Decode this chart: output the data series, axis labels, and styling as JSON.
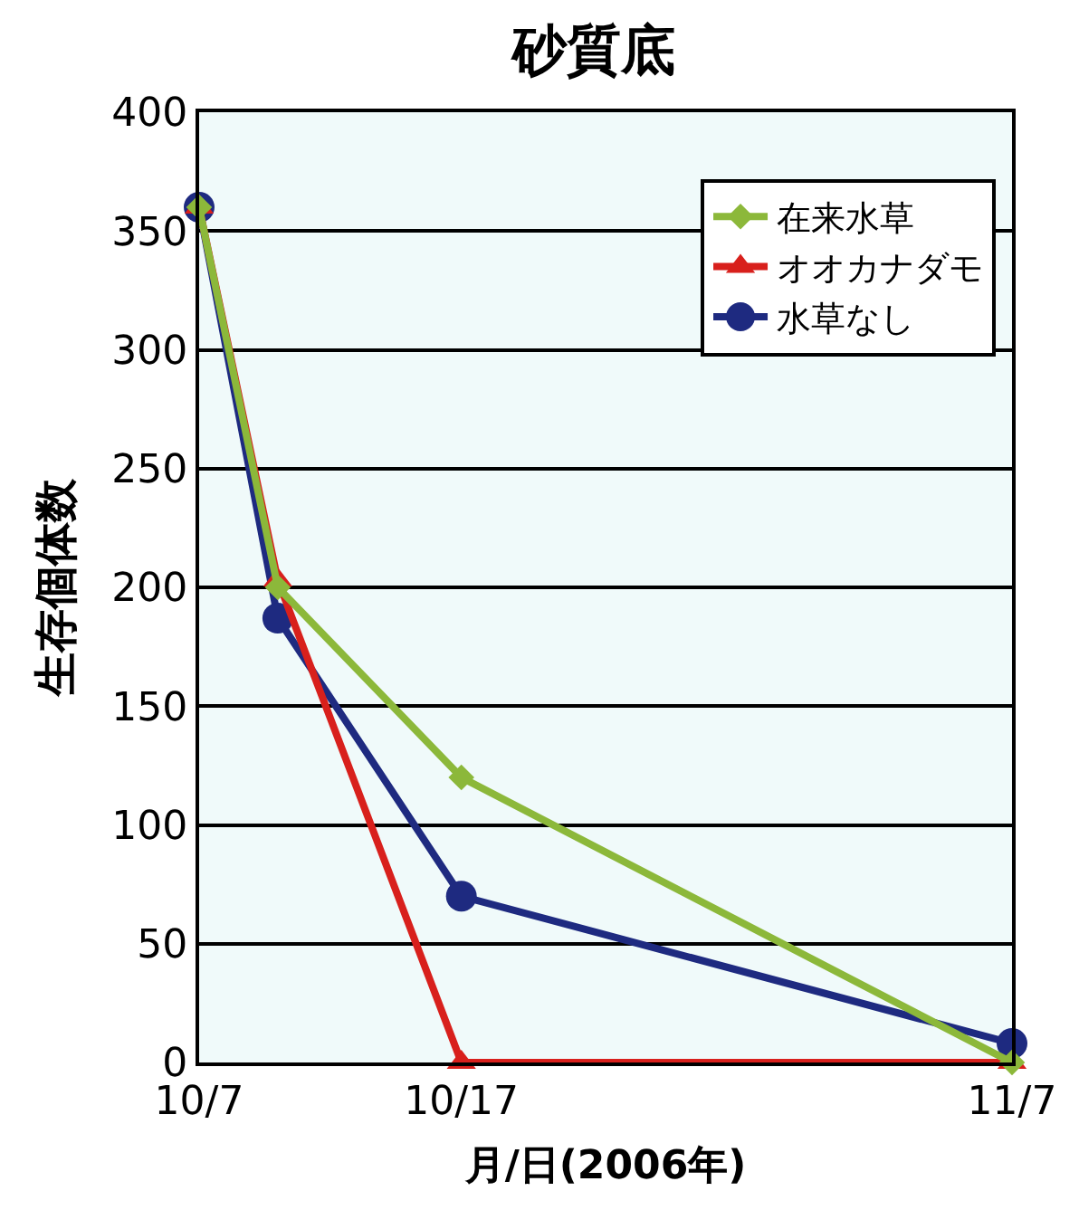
{
  "chart_data": {
    "type": "line",
    "title": "砂質底",
    "xlabel": "月/日(2006年)",
    "ylabel": "生存個体数",
    "x": [
      "2006-10-07",
      "2006-10-10",
      "2006-10-17",
      "2006-11-07"
    ],
    "series": [
      {
        "name": "在来水草",
        "color": "#8cb83a",
        "marker": "diamond",
        "values": [
          360,
          200,
          120,
          0
        ]
      },
      {
        "name": "オオカナダモ",
        "color": "#d8201c",
        "marker": "triangle",
        "values": [
          360,
          203,
          0,
          0
        ]
      },
      {
        "name": "水草なし",
        "color": "#1e2a80",
        "marker": "circle",
        "values": [
          360,
          187,
          70,
          8
        ]
      }
    ],
    "xlim": [
      "2006-10-07",
      "2006-11-07"
    ],
    "xticks": [
      {
        "value": "2006-10-07",
        "label": "10/7"
      },
      {
        "value": "2006-10-17",
        "label": "10/17"
      },
      {
        "value": "2006-11-07",
        "label": "11/7"
      }
    ],
    "ylim": [
      0,
      400
    ],
    "yticks": [
      0,
      50,
      100,
      150,
      200,
      250,
      300,
      350,
      400
    ],
    "grid": "y",
    "legend": "top right",
    "line_style": "solid"
  }
}
